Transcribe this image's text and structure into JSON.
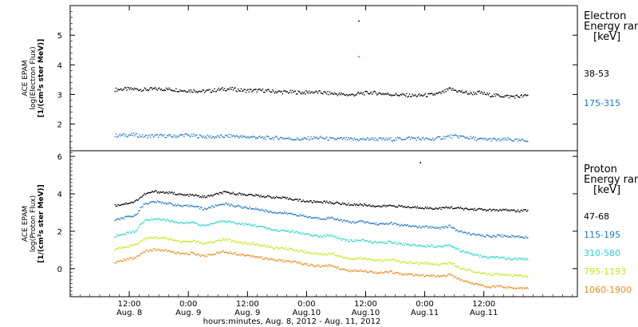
{
  "chart_data": [
    {
      "type": "scatter",
      "panel": "electron",
      "ylabel_lines": [
        "ACE EPAM",
        "log(Electron Flux)",
        "[1/(cm²s ster MeV)]"
      ],
      "ylim": [
        1.1,
        6.0
      ],
      "yticks": [
        2,
        3,
        4,
        5
      ],
      "legend_title_lines": [
        "Electron",
        "Energy range",
        "[keV]"
      ],
      "series": [
        {
          "name": "38-53",
          "color": "#000000",
          "x": [
            0,
            2,
            4,
            6,
            8,
            10,
            12,
            14,
            16,
            18,
            20,
            22,
            24,
            26,
            28,
            30,
            32,
            34,
            36,
            38,
            40,
            42,
            44,
            46,
            48,
            50,
            52,
            54,
            56,
            58,
            60,
            62,
            64,
            66,
            68,
            70,
            72,
            74,
            76,
            78,
            80,
            82,
            84
          ],
          "y": [
            3.18,
            3.2,
            3.2,
            3.18,
            3.2,
            3.2,
            3.18,
            3.15,
            3.15,
            3.12,
            3.15,
            3.2,
            3.2,
            3.15,
            3.15,
            3.15,
            3.12,
            3.1,
            3.1,
            3.08,
            3.1,
            3.08,
            3.05,
            3.02,
            3.0,
            3.05,
            3.08,
            3.05,
            3.02,
            3.0,
            2.98,
            2.98,
            3.0,
            3.05,
            3.2,
            3.12,
            3.05,
            3.08,
            3.0,
            2.98,
            2.95,
            2.95,
            2.98
          ]
        },
        {
          "name": "175-315",
          "color": "#1f78c8",
          "x": [
            0,
            2,
            4,
            6,
            8,
            10,
            12,
            14,
            16,
            18,
            20,
            22,
            24,
            26,
            28,
            30,
            32,
            34,
            36,
            38,
            40,
            42,
            44,
            46,
            48,
            50,
            52,
            54,
            56,
            58,
            60,
            62,
            64,
            66,
            68,
            70,
            72,
            74,
            76,
            78,
            80,
            82,
            84
          ],
          "y": [
            1.62,
            1.65,
            1.65,
            1.6,
            1.62,
            1.62,
            1.6,
            1.65,
            1.62,
            1.6,
            1.58,
            1.6,
            1.62,
            1.58,
            1.58,
            1.55,
            1.55,
            1.55,
            1.52,
            1.5,
            1.55,
            1.55,
            1.5,
            1.52,
            1.5,
            1.5,
            1.52,
            1.5,
            1.5,
            1.52,
            1.55,
            1.52,
            1.5,
            1.55,
            1.6,
            1.6,
            1.55,
            1.5,
            1.5,
            1.48,
            1.5,
            1.45,
            1.48
          ]
        }
      ],
      "outliers": [
        {
          "x": 49.5,
          "y": 5.5,
          "color": "#000000"
        },
        {
          "x": 49.5,
          "y": 4.3,
          "color": "#1f78c8"
        }
      ]
    },
    {
      "type": "scatter",
      "panel": "proton",
      "ylabel_lines": [
        "ACE EPAM",
        "log(Proton Flux)",
        "[1/(cm²s ster MeV)]"
      ],
      "ylim": [
        -1.5,
        6.3
      ],
      "yticks": [
        0,
        2,
        4,
        6
      ],
      "legend_title_lines": [
        "Proton",
        "Energy range",
        "[keV]"
      ],
      "series": [
        {
          "name": "47-68",
          "color": "#000000",
          "x": [
            0,
            2,
            4,
            6,
            8,
            10,
            12,
            14,
            16,
            18,
            20,
            22,
            24,
            26,
            28,
            30,
            32,
            34,
            36,
            38,
            40,
            42,
            44,
            46,
            48,
            50,
            52,
            54,
            56,
            58,
            60,
            62,
            64,
            66,
            68,
            70,
            72,
            74,
            76,
            78,
            80,
            82,
            84
          ],
          "y": [
            3.4,
            3.5,
            3.6,
            4.0,
            4.15,
            4.1,
            4.05,
            3.95,
            3.95,
            3.85,
            3.95,
            4.1,
            4.05,
            4.0,
            3.95,
            3.9,
            3.85,
            3.8,
            3.75,
            3.65,
            3.6,
            3.6,
            3.55,
            3.5,
            3.45,
            3.45,
            3.4,
            3.35,
            3.4,
            3.35,
            3.3,
            3.3,
            3.25,
            3.25,
            3.3,
            3.25,
            3.2,
            3.2,
            3.15,
            3.15,
            3.15,
            3.1,
            3.15
          ]
        },
        {
          "name": "115-195",
          "color": "#1f78c8",
          "x": [
            0,
            2,
            4,
            6,
            8,
            10,
            12,
            14,
            16,
            18,
            20,
            22,
            24,
            26,
            28,
            30,
            32,
            34,
            36,
            38,
            40,
            42,
            44,
            46,
            48,
            50,
            52,
            54,
            56,
            58,
            60,
            62,
            64,
            66,
            68,
            70,
            72,
            74,
            76,
            78,
            80,
            82,
            84
          ],
          "y": [
            2.6,
            2.75,
            2.85,
            3.5,
            3.6,
            3.55,
            3.45,
            3.35,
            3.4,
            3.2,
            3.35,
            3.5,
            3.4,
            3.3,
            3.25,
            3.15,
            3.05,
            3.0,
            2.95,
            2.85,
            2.75,
            2.7,
            2.75,
            2.6,
            2.5,
            2.55,
            2.45,
            2.4,
            2.45,
            2.35,
            2.3,
            2.25,
            2.25,
            2.2,
            2.3,
            2.0,
            1.9,
            1.8,
            1.75,
            1.8,
            1.75,
            1.75,
            1.7
          ]
        },
        {
          "name": "310-580",
          "color": "#2ad6c8",
          "x": [
            0,
            2,
            4,
            6,
            8,
            10,
            12,
            14,
            16,
            18,
            20,
            22,
            24,
            26,
            28,
            30,
            32,
            34,
            36,
            38,
            40,
            42,
            44,
            46,
            48,
            50,
            52,
            54,
            56,
            58,
            60,
            62,
            64,
            66,
            68,
            70,
            72,
            74,
            76,
            78,
            80,
            82,
            84
          ],
          "y": [
            1.75,
            1.9,
            2.0,
            2.6,
            2.7,
            2.65,
            2.55,
            2.45,
            2.5,
            2.3,
            2.45,
            2.6,
            2.5,
            2.4,
            2.35,
            2.25,
            2.1,
            2.05,
            2.0,
            1.9,
            1.8,
            1.75,
            1.8,
            1.6,
            1.5,
            1.55,
            1.45,
            1.4,
            1.45,
            1.35,
            1.3,
            1.25,
            1.25,
            1.2,
            1.3,
            1.0,
            0.85,
            0.7,
            0.6,
            0.65,
            0.55,
            0.55,
            0.5
          ]
        },
        {
          "name": "795-1193",
          "color": "#c8e61e",
          "x": [
            0,
            2,
            4,
            6,
            8,
            10,
            12,
            14,
            16,
            18,
            20,
            22,
            24,
            26,
            28,
            30,
            32,
            34,
            36,
            38,
            40,
            42,
            44,
            46,
            48,
            50,
            52,
            54,
            56,
            58,
            60,
            62,
            64,
            66,
            68,
            70,
            72,
            74,
            76,
            78,
            80,
            82,
            84
          ],
          "y": [
            1.05,
            1.2,
            1.3,
            1.6,
            1.7,
            1.65,
            1.55,
            1.45,
            1.5,
            1.35,
            1.45,
            1.6,
            1.5,
            1.4,
            1.35,
            1.25,
            1.15,
            1.1,
            1.05,
            0.95,
            0.85,
            0.8,
            0.85,
            0.65,
            0.55,
            0.6,
            0.5,
            0.45,
            0.5,
            0.4,
            0.35,
            0.3,
            0.3,
            0.25,
            0.35,
            0.1,
            -0.05,
            -0.2,
            -0.3,
            -0.25,
            -0.35,
            -0.35,
            -0.4
          ]
        },
        {
          "name": "1060-1900",
          "color": "#ec8a1e",
          "x": [
            0,
            2,
            4,
            6,
            8,
            10,
            12,
            14,
            16,
            18,
            20,
            22,
            24,
            26,
            28,
            30,
            32,
            34,
            36,
            38,
            40,
            42,
            44,
            46,
            48,
            50,
            52,
            54,
            56,
            58,
            60,
            62,
            64,
            66,
            68,
            70,
            72,
            74,
            76,
            78,
            80,
            82,
            84
          ],
          "y": [
            0.35,
            0.5,
            0.6,
            0.95,
            1.05,
            1.0,
            0.9,
            0.8,
            0.85,
            0.7,
            0.8,
            0.95,
            0.85,
            0.75,
            0.7,
            0.6,
            0.5,
            0.45,
            0.4,
            0.3,
            0.2,
            0.15,
            0.2,
            0.0,
            -0.1,
            -0.05,
            -0.15,
            -0.2,
            -0.15,
            -0.25,
            -0.3,
            -0.35,
            -0.35,
            -0.4,
            -0.3,
            -0.55,
            -0.7,
            -0.85,
            -0.95,
            -0.9,
            -1.0,
            -1.0,
            -1.05
          ]
        }
      ],
      "outliers": [
        {
          "x": 62,
          "y": 5.7,
          "color": "#000000"
        }
      ]
    }
  ],
  "x_axis": {
    "xlim": [
      -9,
      94
    ],
    "ticks": [
      {
        "x": 3,
        "time": "12:00",
        "date": "Aug. 8"
      },
      {
        "x": 15,
        "time": "0:00",
        "date": "Aug. 9"
      },
      {
        "x": 27,
        "time": "12:00",
        "date": "Aug. 9"
      },
      {
        "x": 39,
        "time": "0:00",
        "date": "Aug.10"
      },
      {
        "x": 51,
        "time": "12:00",
        "date": "Aug.10"
      },
      {
        "x": 63,
        "time": "0:00",
        "date": "Aug.11"
      },
      {
        "x": 75,
        "time": "12:00",
        "date": "Aug.11"
      }
    ],
    "label": "hours:minutes, Aug.  8, 2012 - Aug. 11, 2012"
  }
}
